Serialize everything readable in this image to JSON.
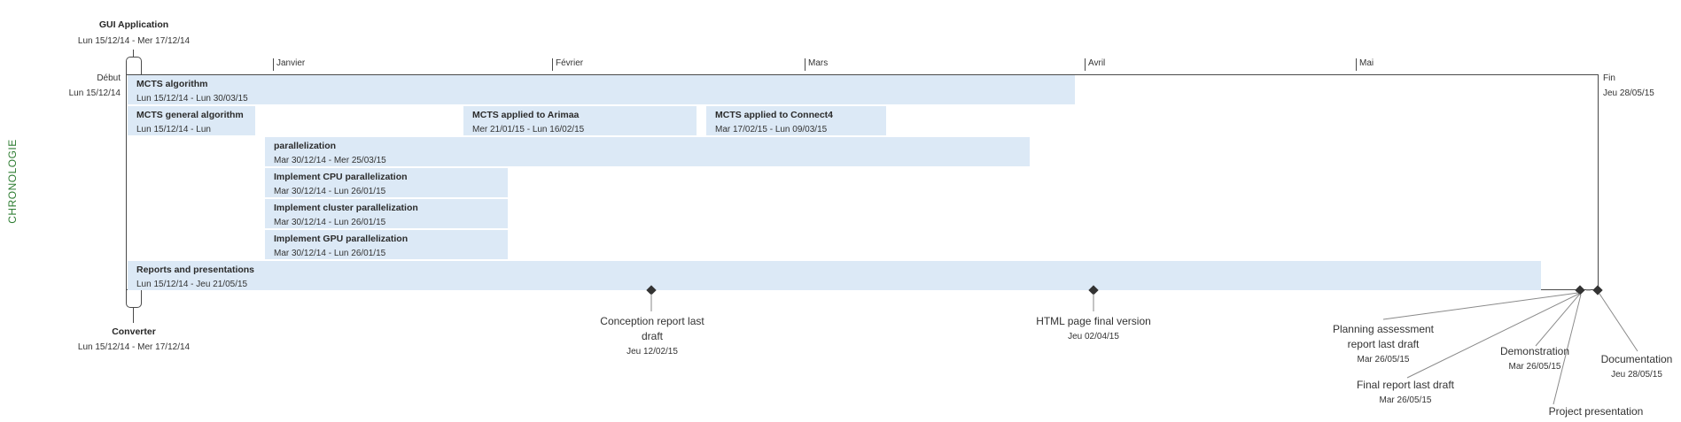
{
  "side_label": "CHRONOLOGIE",
  "months": [
    "Janvier",
    "Février",
    "Mars",
    "Avril",
    "Mai"
  ],
  "start": {
    "label": "Début",
    "date": "Lun 15/12/14"
  },
  "end": {
    "label": "Fin",
    "date": "Jeu 28/05/15"
  },
  "callouts": {
    "top": {
      "title": "GUI Application",
      "date": "Lun 15/12/14 - Mer 17/12/14"
    },
    "bottom": {
      "title": "Converter",
      "date": "Lun 15/12/14 - Mer 17/12/14"
    }
  },
  "tasks": [
    {
      "title": "MCTS algorithm",
      "date": "Lun 15/12/14 - Lun 30/03/15"
    },
    {
      "title": "MCTS general algorithm",
      "date": "Lun 15/12/14 - Lun"
    },
    {
      "title": "MCTS  applied to Arimaa",
      "date": "Mer 21/01/15 - Lun 16/02/15"
    },
    {
      "title": "MCTS applied to Connect4",
      "date": "Mar 17/02/15 - Lun 09/03/15"
    },
    {
      "title": "parallelization",
      "date": "Mar 30/12/14 - Mer 25/03/15"
    },
    {
      "title": "Implement CPU parallelization",
      "date": "Mar 30/12/14 - Lun 26/01/15"
    },
    {
      "title": "Implement cluster parallelization",
      "date": "Mar 30/12/14 - Lun 26/01/15"
    },
    {
      "title": "Implement GPU parallelization",
      "date": "Mar 30/12/14 - Lun 26/01/15"
    },
    {
      "title": "Reports and presentations",
      "date": "Lun 15/12/14 - Jeu 21/05/15"
    }
  ],
  "milestones": [
    {
      "title": "Conception report last draft",
      "date": "Jeu 12/02/15"
    },
    {
      "title": "HTML page final version",
      "date": "Jeu 02/04/15"
    },
    {
      "title": "Planning assessment report last draft",
      "date": "Mar 26/05/15"
    },
    {
      "title": "Demonstration",
      "date": "Mar 26/05/15"
    },
    {
      "title": "Documentation",
      "date": "Jeu 28/05/15"
    },
    {
      "title": "Final report last draft",
      "date": "Mar 26/05/15"
    },
    {
      "title": "Project presentation",
      "date": ""
    }
  ]
}
